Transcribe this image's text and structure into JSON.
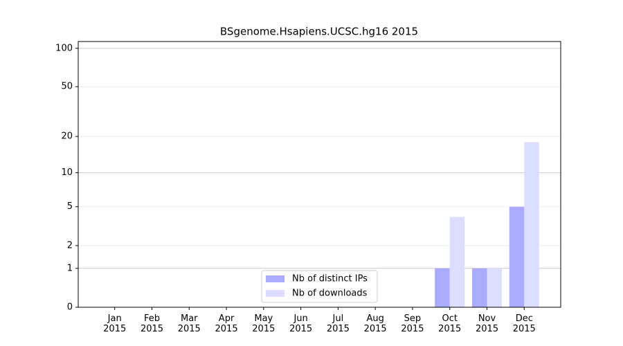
{
  "chart_data": {
    "type": "bar",
    "title": "BSgenome.Hsapiens.UCSC.hg16 2015",
    "categories": [
      "Jan 2015",
      "Feb 2015",
      "Mar 2015",
      "Apr 2015",
      "May 2015",
      "Jun 2015",
      "Jul 2015",
      "Aug 2015",
      "Sep 2015",
      "Oct 2015",
      "Nov 2015",
      "Dec 2015"
    ],
    "series": [
      {
        "name": "Nb of distinct IPs",
        "color": "#aaaaff",
        "values": [
          0,
          0,
          0,
          0,
          0,
          0,
          0,
          0,
          0,
          1,
          1,
          5
        ]
      },
      {
        "name": "Nb of downloads",
        "color": "#ddddff",
        "values": [
          0,
          0,
          0,
          0,
          0,
          0,
          0,
          0,
          0,
          4,
          1,
          18
        ]
      }
    ],
    "yscale": "log1p",
    "ylim": [
      0,
      113
    ],
    "yticks": [
      0,
      1,
      2,
      5,
      10,
      20,
      50,
      100
    ],
    "grid": true,
    "legend": "lower center"
  }
}
